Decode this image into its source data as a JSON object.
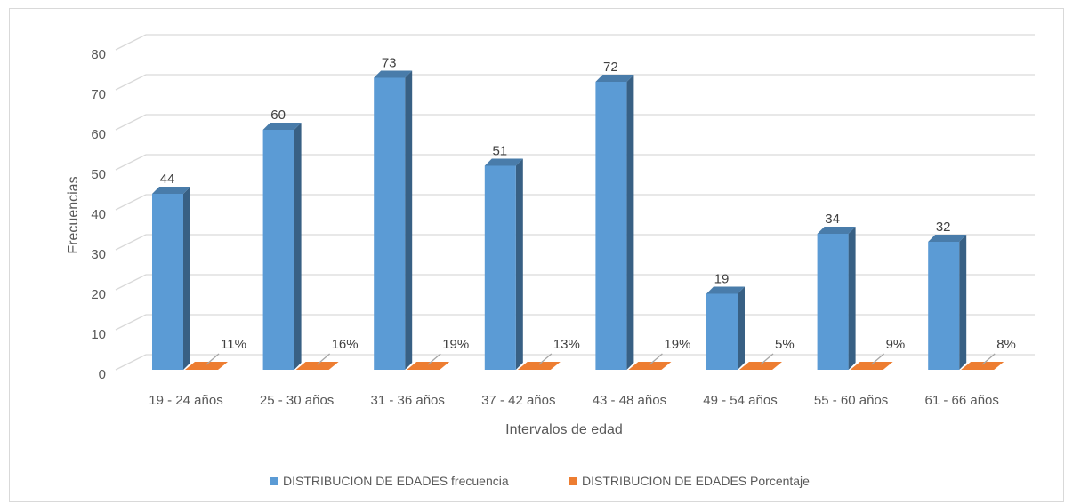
{
  "chart_data": {
    "type": "bar",
    "categories": [
      "19 - 24 años",
      "25 - 30 años",
      "31 - 36 años",
      "37 - 42 años",
      "43 - 48 años",
      "49 - 54 años",
      "55 - 60 años",
      "61 - 66 años"
    ],
    "series": [
      {
        "name": "DISTRIBUCION DE EDADES frecuencia",
        "values": [
          44,
          60,
          73,
          51,
          72,
          19,
          34,
          32
        ],
        "labels": [
          "44",
          "60",
          "73",
          "51",
          "72",
          "19",
          "34",
          "32"
        ],
        "color": "#5b9bd5"
      },
      {
        "name": "DISTRIBUCION DE EDADES Porcentaje",
        "values": [
          0.11,
          0.16,
          0.19,
          0.13,
          0.19,
          0.05,
          0.09,
          0.08
        ],
        "labels": [
          "11%",
          "16%",
          "19%",
          "13%",
          "19%",
          "5%",
          "9%",
          "8%"
        ],
        "color": "#ed7d31"
      }
    ],
    "xlabel": "Intervalos de edad",
    "ylabel": "Frecuencias",
    "ylim": [
      0,
      80
    ],
    "yticks": [
      "0",
      "10",
      "20",
      "30",
      "40",
      "50",
      "60",
      "70",
      "80"
    ],
    "grid": true,
    "legend": "bottom",
    "style": "3d-column"
  }
}
